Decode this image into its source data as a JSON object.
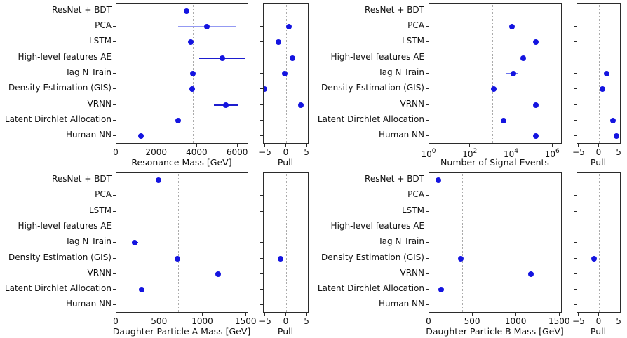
{
  "figure": {
    "background": "#ffffff"
  },
  "chart_data": {
    "type": "scatter",
    "description": "Anomaly-detection method comparison: fitted values vs truth (dotted line) with pull sub-panels",
    "categories": [
      "ResNet + BDT",
      "PCA",
      "LSTM",
      "High-level features AE",
      "Tag N Train",
      "Density Estimation (GIS)",
      "VRNN",
      "Latent Dirchlet Allocation",
      "Human NN"
    ],
    "colors": {
      "point": "#1414e0",
      "error_light": "#9399f2",
      "error_medium": "#6b74ee",
      "error_dark": "#1d1dcf",
      "truth_line": "#ababab",
      "spine": "#2b2b2b",
      "text": "#111111"
    },
    "pull_label": "Pull",
    "pull_axis": {
      "xlim": [
        -5.5,
        5.5
      ],
      "xticks": [
        {
          "v": -5,
          "label": "−5"
        },
        {
          "v": 0,
          "label": "0"
        },
        {
          "v": 5,
          "label": "5"
        }
      ]
    },
    "panels": [
      {
        "id": "resonance-mass",
        "xlabel": "Resonance Mass [GeV]",
        "scale": "linear",
        "xlim": [
          0,
          6550
        ],
        "xticks": [
          {
            "v": 0,
            "label": "0"
          },
          {
            "v": 2000,
            "label": "2000"
          },
          {
            "v": 4000,
            "label": "4000"
          },
          {
            "v": 6000,
            "label": "6000"
          }
        ],
        "truth": 3800,
        "points": [
          {
            "cat": 0,
            "x": 3500
          },
          {
            "cat": 1,
            "x": 4500,
            "lo": 3050,
            "hi": 5960,
            "bar": "error_light"
          },
          {
            "cat": 2,
            "x": 3700
          },
          {
            "cat": 3,
            "x": 5240,
            "lo": 4120,
            "hi": 6360,
            "bar": "error_dark"
          },
          {
            "cat": 4,
            "x": 3810
          },
          {
            "cat": 5,
            "x": 3770
          },
          {
            "cat": 6,
            "x": 5430,
            "lo": 4850,
            "hi": 6020,
            "bar": "error_dark"
          },
          {
            "cat": 7,
            "x": 3070
          },
          {
            "cat": 8,
            "x": 1240
          }
        ],
        "pull_points": [
          {
            "cat": 1,
            "x": 0.7
          },
          {
            "cat": 2,
            "x": -1.9
          },
          {
            "cat": 3,
            "x": 1.6
          },
          {
            "cat": 4,
            "x": -0.4
          },
          {
            "cat": 5,
            "x": -5.2
          },
          {
            "cat": 6,
            "x": 3.6
          }
        ]
      },
      {
        "id": "signal-events",
        "xlabel": "Number of Signal Events",
        "scale": "log",
        "xlim": [
          1,
          2950000
        ],
        "xticks": [
          {
            "v": 1,
            "label": "10^0"
          },
          {
            "v": 100,
            "label": "10^2"
          },
          {
            "v": 10000,
            "label": "10^4"
          },
          {
            "v": 1000000,
            "label": "10^6"
          }
        ],
        "truth": 1200,
        "points": [
          {
            "cat": 1,
            "x": 11000
          },
          {
            "cat": 2,
            "x": 160000
          },
          {
            "cat": 3,
            "x": 39000
          },
          {
            "cat": 4,
            "x": 13000,
            "lo": 5500,
            "hi": 20500,
            "bar": "error_medium"
          },
          {
            "cat": 5,
            "x": 1400
          },
          {
            "cat": 6,
            "x": 160000
          },
          {
            "cat": 7,
            "x": 4300
          },
          {
            "cat": 8,
            "x": 155000
          }
        ],
        "pull_points": [
          {
            "cat": 4,
            "x": 2.0
          },
          {
            "cat": 5,
            "x": 0.8
          },
          {
            "cat": 7,
            "x": 3.5
          },
          {
            "cat": 8,
            "x": 4.4
          }
        ]
      },
      {
        "id": "daughter-a-mass",
        "xlabel": "Daughter Particle A Mass [GeV]",
        "scale": "linear",
        "xlim": [
          0,
          1530
        ],
        "xticks": [
          {
            "v": 0,
            "label": "0"
          },
          {
            "v": 500,
            "label": "500"
          },
          {
            "v": 1000,
            "label": "1000"
          },
          {
            "v": 1500,
            "label": "1500"
          }
        ],
        "truth": 720,
        "points": [
          {
            "cat": 0,
            "x": 490
          },
          {
            "cat": 4,
            "x": 218,
            "lo": 180,
            "hi": 255,
            "bar": "error_dark"
          },
          {
            "cat": 5,
            "x": 710
          },
          {
            "cat": 6,
            "x": 1175
          },
          {
            "cat": 7,
            "x": 295
          }
        ],
        "pull_points": [
          {
            "cat": 5,
            "x": -1.3
          }
        ]
      },
      {
        "id": "daughter-b-mass",
        "xlabel": "Daughter Particle B Mass [GeV]",
        "scale": "linear",
        "xlim": [
          0,
          1530
        ],
        "xticks": [
          {
            "v": 0,
            "label": "0"
          },
          {
            "v": 500,
            "label": "500"
          },
          {
            "v": 1000,
            "label": "1000"
          },
          {
            "v": 1500,
            "label": "1500"
          }
        ],
        "truth": 380,
        "points": [
          {
            "cat": 0,
            "x": 110
          },
          {
            "cat": 5,
            "x": 370
          },
          {
            "cat": 6,
            "x": 1175
          },
          {
            "cat": 7,
            "x": 140
          }
        ],
        "pull_points": [
          {
            "cat": 5,
            "x": -1.3
          }
        ]
      }
    ]
  }
}
